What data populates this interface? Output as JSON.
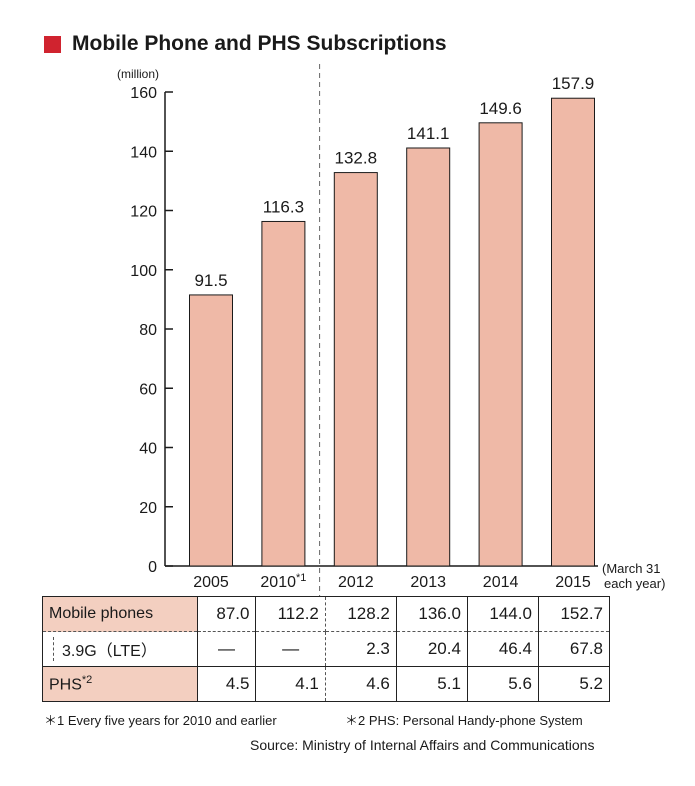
{
  "title": "Mobile Phone and PHS Subscriptions",
  "colors": {
    "bar": "#efb9a7",
    "title_square": "#d0232f",
    "row_header": "#f3cfc0"
  },
  "chart_data": {
    "type": "bar",
    "unit_label": "(million)",
    "categories": [
      "2005",
      "2010",
      "2012",
      "2013",
      "2014",
      "2015"
    ],
    "category_marks": [
      "",
      "*1",
      "",
      "",
      "",
      ""
    ],
    "values": [
      91.5,
      116.3,
      132.8,
      141.1,
      149.6,
      157.9
    ],
    "value_labels": [
      "91.5",
      "116.3",
      "132.8",
      "141.1",
      "149.6",
      "157.9"
    ],
    "y_ticks": [
      "0",
      "20",
      "40",
      "60",
      "80",
      "100",
      "120",
      "140",
      "160"
    ],
    "ylim": [
      0,
      160
    ],
    "x_note_line1": "(March 31",
    "x_note_line2": "each year)",
    "divider_after_category": "2010"
  },
  "table": {
    "rows": [
      {
        "label": "Mobile phones",
        "mark": "",
        "values": [
          "87.0",
          "112.2",
          "128.2",
          "136.0",
          "144.0",
          "152.7"
        ]
      },
      {
        "label": "3.9G（LTE）",
        "mark": "",
        "values": [
          "—",
          "—",
          "2.3",
          "20.4",
          "46.4",
          "67.8"
        ]
      },
      {
        "label": "PHS",
        "mark": "*2",
        "values": [
          "4.5",
          "4.1",
          "4.6",
          "5.1",
          "5.6",
          "5.2"
        ]
      }
    ]
  },
  "footnotes": {
    "note1": "＊1 Every five years for 2010 and earlier",
    "note2": "＊2 PHS: Personal Handy-phone System"
  },
  "source": "Source: Ministry of Internal Affairs and Communications"
}
